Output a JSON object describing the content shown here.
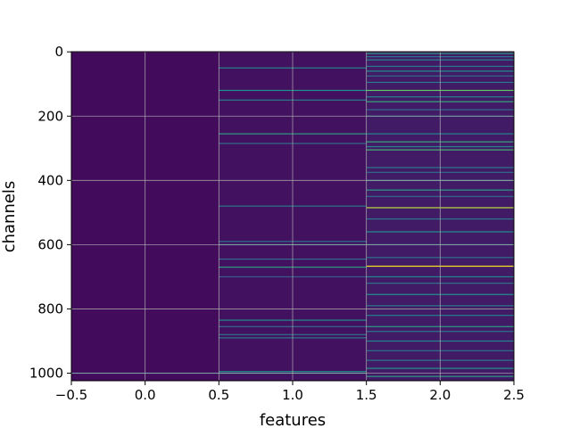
{
  "chart_data": {
    "type": "heatmap",
    "title": "",
    "xlabel": "features",
    "ylabel": "channels",
    "xlim": [
      -0.5,
      2.5
    ],
    "ylim": [
      1023.5,
      -0.5
    ],
    "y_axis_inverted": true,
    "x_ticks": [
      -0.5,
      0.0,
      0.5,
      1.0,
      1.5,
      2.0,
      2.5
    ],
    "x_tick_labels": [
      "−0.5",
      "0.0",
      "0.5",
      "1.0",
      "1.5",
      "2.0",
      "2.5"
    ],
    "y_ticks": [
      0,
      200,
      400,
      600,
      800,
      1000
    ],
    "y_tick_labels": [
      "0",
      "200",
      "400",
      "600",
      "800",
      "1000"
    ],
    "grid": true,
    "colormap": "viridis",
    "value_range": [
      0,
      1
    ],
    "n_rows": 1024,
    "columns": [
      {
        "feature": 0,
        "base_value": 0.03,
        "bright_rows": [
          {
            "row": 1000,
            "value": 0.35
          }
        ]
      },
      {
        "feature": 1,
        "base_value": 0.05,
        "bright_rows": [
          {
            "row": 50,
            "value": 0.45
          },
          {
            "row": 120,
            "value": 0.5
          },
          {
            "row": 150,
            "value": 0.42
          },
          {
            "row": 255,
            "value": 0.55
          },
          {
            "row": 285,
            "value": 0.35
          },
          {
            "row": 480,
            "value": 0.4
          },
          {
            "row": 590,
            "value": 0.38
          },
          {
            "row": 600,
            "value": 0.45
          },
          {
            "row": 645,
            "value": 0.35
          },
          {
            "row": 670,
            "value": 0.55
          },
          {
            "row": 700,
            "value": 0.3
          },
          {
            "row": 835,
            "value": 0.48
          },
          {
            "row": 855,
            "value": 0.35
          },
          {
            "row": 880,
            "value": 0.38
          },
          {
            "row": 890,
            "value": 0.4
          },
          {
            "row": 995,
            "value": 0.5
          },
          {
            "row": 1000,
            "value": 0.45
          }
        ]
      },
      {
        "feature": 2,
        "base_value": 0.08,
        "bright_rows": [
          {
            "row": 5,
            "value": 0.55
          },
          {
            "row": 15,
            "value": 0.4
          },
          {
            "row": 25,
            "value": 0.45
          },
          {
            "row": 45,
            "value": 0.4
          },
          {
            "row": 60,
            "value": 0.5
          },
          {
            "row": 75,
            "value": 0.35
          },
          {
            "row": 95,
            "value": 0.4
          },
          {
            "row": 120,
            "value": 0.75
          },
          {
            "row": 140,
            "value": 0.45
          },
          {
            "row": 155,
            "value": 0.6
          },
          {
            "row": 180,
            "value": 0.35
          },
          {
            "row": 200,
            "value": 0.38
          },
          {
            "row": 255,
            "value": 0.45
          },
          {
            "row": 280,
            "value": 0.6
          },
          {
            "row": 295,
            "value": 0.45
          },
          {
            "row": 305,
            "value": 0.65
          },
          {
            "row": 360,
            "value": 0.4
          },
          {
            "row": 375,
            "value": 0.35
          },
          {
            "row": 400,
            "value": 0.45
          },
          {
            "row": 430,
            "value": 0.55
          },
          {
            "row": 450,
            "value": 0.35
          },
          {
            "row": 485,
            "value": 0.9
          },
          {
            "row": 520,
            "value": 0.4
          },
          {
            "row": 560,
            "value": 0.5
          },
          {
            "row": 600,
            "value": 0.42
          },
          {
            "row": 640,
            "value": 0.38
          },
          {
            "row": 667,
            "value": 1.0
          },
          {
            "row": 700,
            "value": 0.45
          },
          {
            "row": 720,
            "value": 0.38
          },
          {
            "row": 755,
            "value": 0.5
          },
          {
            "row": 790,
            "value": 0.4
          },
          {
            "row": 820,
            "value": 0.42
          },
          {
            "row": 855,
            "value": 0.55
          },
          {
            "row": 870,
            "value": 0.38
          },
          {
            "row": 900,
            "value": 0.45
          },
          {
            "row": 930,
            "value": 0.38
          },
          {
            "row": 960,
            "value": 0.4
          },
          {
            "row": 985,
            "value": 0.5
          },
          {
            "row": 1010,
            "value": 0.55
          }
        ]
      }
    ]
  }
}
